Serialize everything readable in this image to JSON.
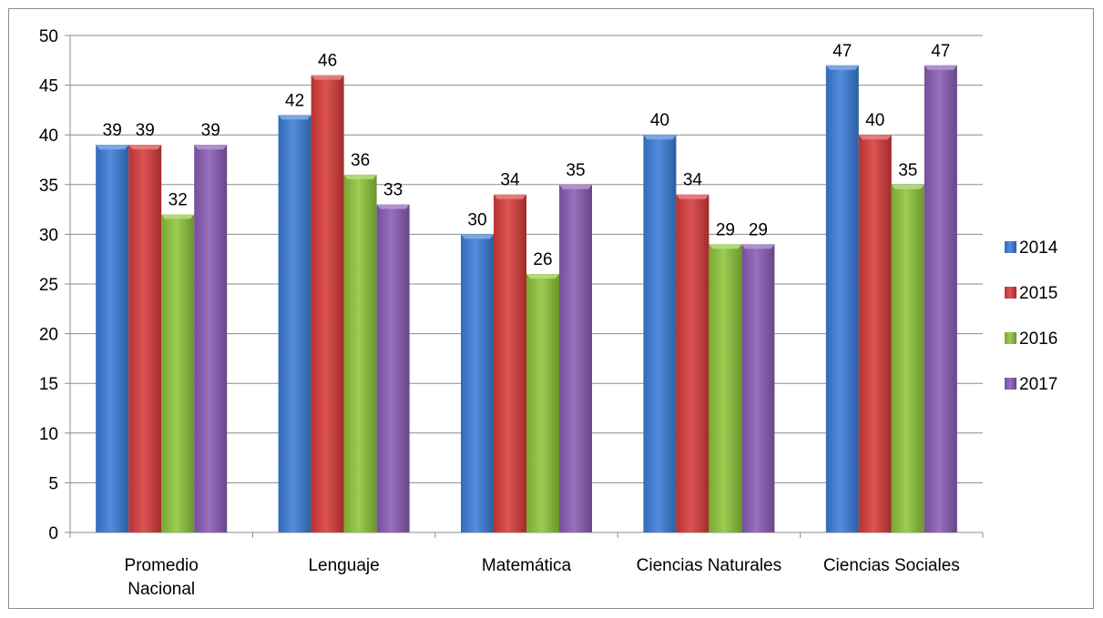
{
  "chart_data": {
    "type": "bar",
    "categories": [
      "Promedio Nacional",
      "Lenguaje",
      "Matemática",
      "Ciencias Naturales",
      "Ciencias Sociales"
    ],
    "series": [
      {
        "name": "2014",
        "values": [
          39,
          42,
          30,
          40,
          47
        ],
        "color": "#3b7dd8"
      },
      {
        "name": "2015",
        "values": [
          39,
          46,
          34,
          34,
          40
        ],
        "color": "#d83b3b"
      },
      {
        "name": "2016",
        "values": [
          32,
          36,
          26,
          29,
          35
        ],
        "color": "#8fc63a"
      },
      {
        "name": "2017",
        "values": [
          39,
          33,
          35,
          29,
          47
        ],
        "color": "#8a5db5"
      }
    ],
    "title": "",
    "xlabel": "",
    "ylabel": "",
    "ylim": [
      0,
      50
    ],
    "yticks": [
      0,
      5,
      10,
      15,
      20,
      25,
      30,
      35,
      40,
      45,
      50
    ],
    "grid": true,
    "data_labels": true,
    "legend_position": "right"
  }
}
